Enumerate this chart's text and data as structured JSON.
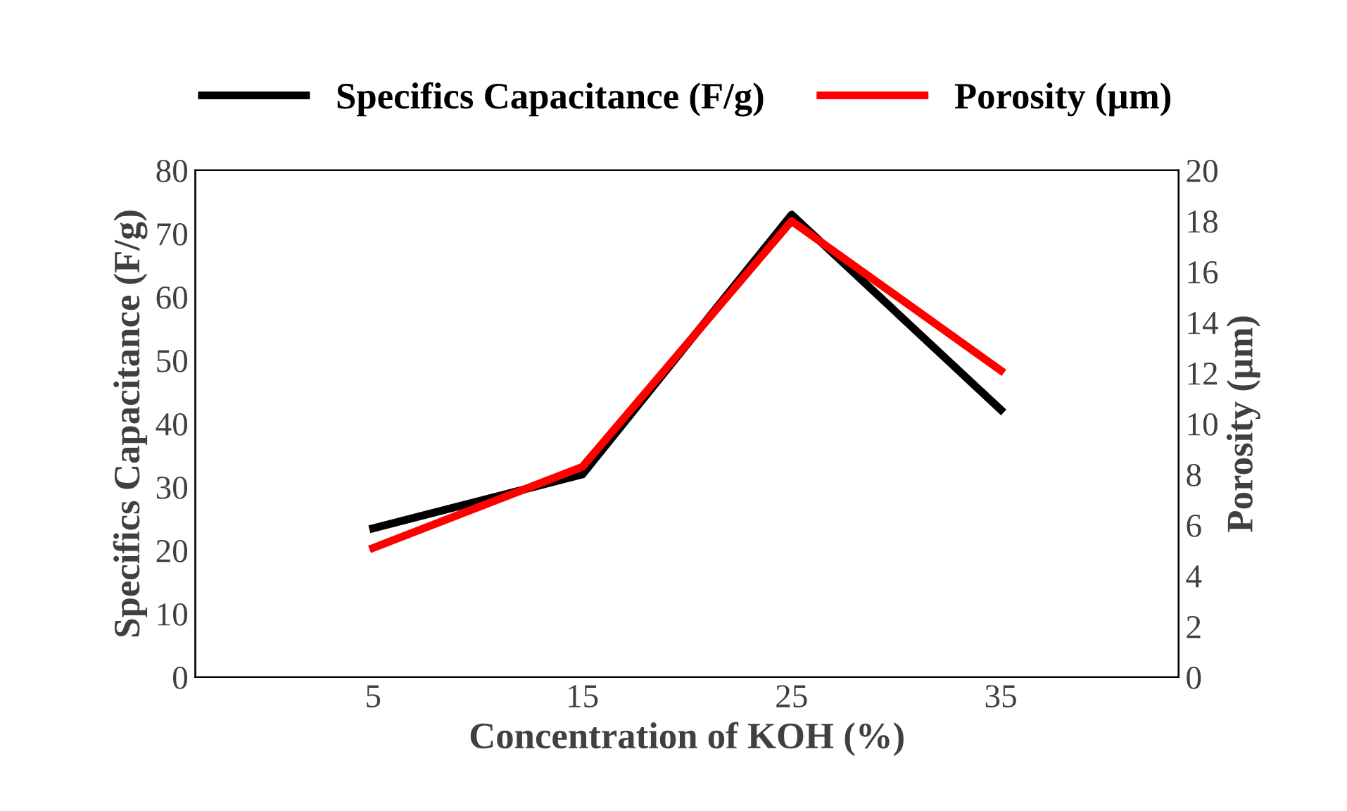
{
  "chart_data": {
    "type": "line",
    "xlabel": "Concentration of KOH (%)",
    "ylabel": "Specifics Capacitance (F/g)",
    "y2label": "Porosity (µm)",
    "categories": [
      "5",
      "15",
      "25",
      "35"
    ],
    "series": [
      {
        "name": "Specifics Capacitance (F/g)",
        "color": "#000000",
        "values": [
          23.5,
          32,
          73,
          42.2
        ]
      },
      {
        "name": "Porosity (µm)",
        "color": "#ff0000",
        "values": [
          5.1,
          8.3,
          18,
          12.1
        ],
        "axis": "y2"
      }
    ],
    "ylim": [
      0,
      80
    ],
    "yticks": [
      0,
      10,
      20,
      30,
      40,
      50,
      60,
      70,
      80
    ],
    "y2lim": [
      0,
      20
    ],
    "y2ticks": [
      0,
      2,
      4,
      6,
      8,
      10,
      12,
      14,
      16,
      18,
      20
    ],
    "legend": "top",
    "grid": false,
    "marker": "none",
    "line_style": "solid"
  }
}
